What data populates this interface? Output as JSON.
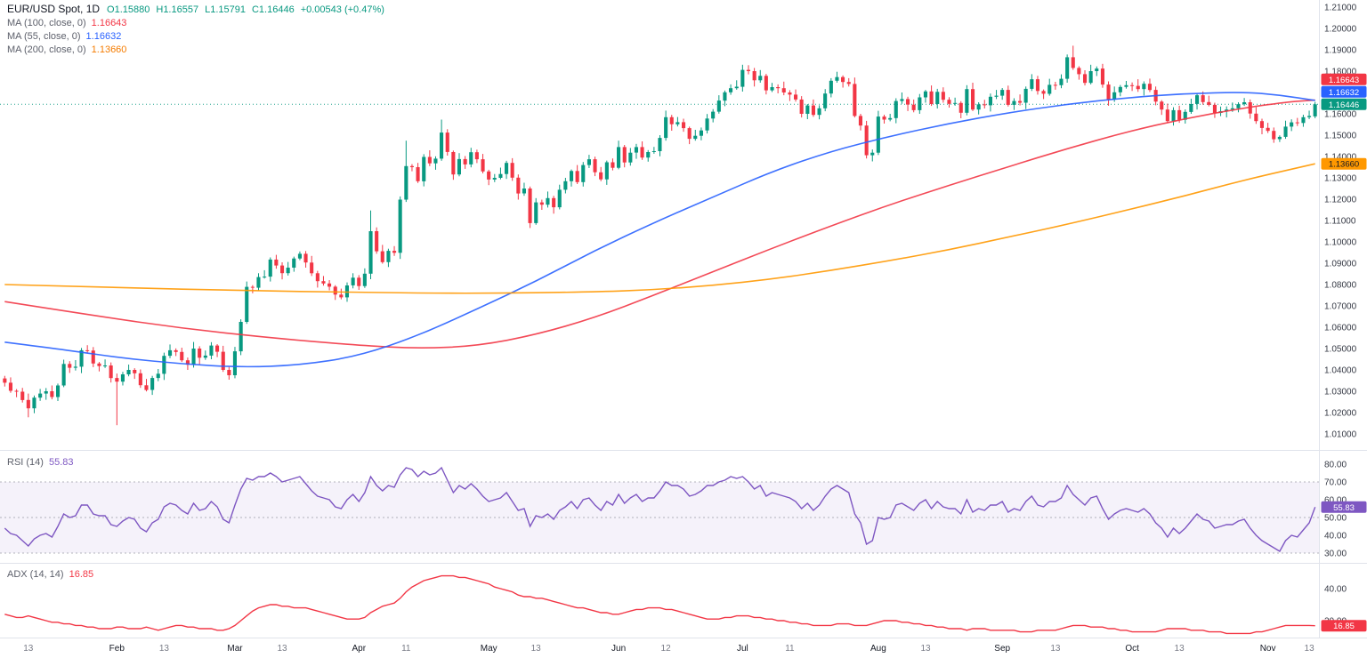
{
  "app": {
    "title": "EUR/USD Spot, 1D"
  },
  "legend": {
    "symbol": "EUR/USD Spot, 1D",
    "o": "O1.15880",
    "h": "H1.16557",
    "l": "L1.15791",
    "c": "C1.16446",
    "change": "+0.00543 (+0.47%)",
    "ma_rows": [
      {
        "label": "MA (100, close, 0)",
        "value": "1.16643"
      },
      {
        "label": "MA (55, close, 0)",
        "value": "1.16632"
      },
      {
        "label": "MA (200, close, 0)",
        "value": "1.13660"
      }
    ]
  },
  "rsi_legend": {
    "label": "RSI (14)",
    "value": "55.83"
  },
  "adx_legend": {
    "label": "ADX (14, 14)",
    "value": "16.85"
  },
  "colors": {
    "up": "#089981",
    "down": "#f23645",
    "ma100": "#f23645",
    "ma55": "#2962ff",
    "ma200": "#ff9800",
    "rsi": "#7e57c2",
    "adx": "#f23645",
    "axis_text": "#363a45",
    "muted_text": "#787b86",
    "separator": "#e0e3eb",
    "rsi_band_fill": "rgba(126,87,194,0.08)"
  },
  "price_scale": {
    "labels": [
      "1.21000",
      "1.20000",
      "1.19000",
      "1.18000",
      "1.17000",
      "1.16000",
      "1.15000",
      "1.14000",
      "1.13000",
      "1.12000",
      "1.11000",
      "1.10000",
      "1.09000",
      "1.08000",
      "1.07000",
      "1.06000",
      "1.05000",
      "1.04000",
      "1.03000",
      "1.02000",
      "1.01000"
    ],
    "badges": [
      {
        "label": "1.16643",
        "value": 1.16643,
        "bg": "#f23645",
        "fg": "#ffffff",
        "name": "ma100-price-badge"
      },
      {
        "label": "1.16632",
        "value": 1.16632,
        "bg": "#2962ff",
        "fg": "#ffffff",
        "name": "ma55-price-badge"
      },
      {
        "label": "1.16446",
        "value": 1.16446,
        "bg": "#089981",
        "fg": "#ffffff",
        "name": "last-price-badge"
      },
      {
        "label": "1.13660",
        "value": 1.1366,
        "bg": "#ff9800",
        "fg": "#131722",
        "name": "ma200-price-badge"
      }
    ]
  },
  "rsi_scale": {
    "labels": [
      "80.00",
      "70.00",
      "60.00",
      "50.00",
      "40.00",
      "30.00"
    ],
    "badge": {
      "label": "55.83",
      "value": 55.83,
      "bg": "#7e57c2",
      "fg": "#ffffff"
    }
  },
  "adx_scale": {
    "labels": [
      "40.00",
      "20.00"
    ],
    "badge": {
      "label": "16.85",
      "value": 16.85,
      "bg": "#f23645",
      "fg": "#ffffff"
    }
  },
  "time_scale": {
    "ticks": [
      {
        "i": 4,
        "label": "13",
        "major": false
      },
      {
        "i": 19,
        "label": "Feb",
        "major": true
      },
      {
        "i": 27,
        "label": "13",
        "major": false
      },
      {
        "i": 39,
        "label": "Mar",
        "major": true
      },
      {
        "i": 47,
        "label": "13",
        "major": false
      },
      {
        "i": 60,
        "label": "Apr",
        "major": true
      },
      {
        "i": 68,
        "label": "11",
        "major": false
      },
      {
        "i": 82,
        "label": "May",
        "major": true
      },
      {
        "i": 90,
        "label": "13",
        "major": false
      },
      {
        "i": 104,
        "label": "Jun",
        "major": true
      },
      {
        "i": 112,
        "label": "12",
        "major": false
      },
      {
        "i": 125,
        "label": "Jul",
        "major": true
      },
      {
        "i": 133,
        "label": "11",
        "major": false
      },
      {
        "i": 148,
        "label": "Aug",
        "major": true
      },
      {
        "i": 156,
        "label": "13",
        "major": false
      },
      {
        "i": 169,
        "label": "Sep",
        "major": true
      },
      {
        "i": 178,
        "label": "13",
        "major": false
      },
      {
        "i": 191,
        "label": "Oct",
        "major": true
      },
      {
        "i": 199,
        "label": "13",
        "major": false
      },
      {
        "i": 214,
        "label": "Nov",
        "major": true
      },
      {
        "i": 221,
        "label": "13",
        "major": false
      }
    ]
  },
  "chart_data": {
    "type": "candlestick",
    "symbol": "EUR/USD Spot",
    "interval": "1D",
    "last": {
      "open": 1.1588,
      "high": 1.16557,
      "low": 1.15791,
      "close": 1.16446,
      "change_abs": 0.00543,
      "change_pct": 0.47
    },
    "price_axis": {
      "min": 1.01,
      "max": 1.21,
      "step": 0.01
    },
    "candles": {
      "first_open": 1.036,
      "closes": [
        1.034,
        1.0302,
        1.0298,
        1.0259,
        1.022,
        1.027,
        1.0289,
        1.03,
        1.0273,
        1.0327,
        1.0428,
        1.041,
        1.0415,
        1.0492,
        1.0491,
        1.043,
        1.0418,
        1.0421,
        1.0362,
        1.0345,
        1.0379,
        1.04,
        1.0384,
        1.0328,
        1.0306,
        1.0362,
        1.0382,
        1.0466,
        1.0492,
        1.0484,
        1.0445,
        1.0424,
        1.05,
        1.0457,
        1.0467,
        1.0514,
        1.0485,
        1.04,
        1.0375,
        1.0487,
        1.0625,
        1.0789,
        1.0785,
        1.0835,
        1.0837,
        1.0917,
        1.0889,
        1.0853,
        1.0879,
        1.0922,
        1.0944,
        1.0903,
        1.0853,
        1.0816,
        1.0805,
        1.079,
        1.0753,
        1.074,
        1.0796,
        1.0832,
        1.0793,
        1.0851,
        1.105,
        1.0956,
        1.0905,
        1.0958,
        1.0949,
        1.1198,
        1.1355,
        1.135,
        1.1284,
        1.1398,
        1.1368,
        1.139,
        1.1512,
        1.1421,
        1.1316,
        1.1388,
        1.1363,
        1.142,
        1.1387,
        1.133,
        1.1292,
        1.13,
        1.1318,
        1.137,
        1.1301,
        1.1227,
        1.125,
        1.1088,
        1.1185,
        1.1174,
        1.1205,
        1.1162,
        1.1244,
        1.1284,
        1.1332,
        1.128,
        1.136,
        1.1387,
        1.1326,
        1.1293,
        1.1373,
        1.1347,
        1.1444,
        1.1372,
        1.1418,
        1.1444,
        1.1395,
        1.1421,
        1.1425,
        1.1487,
        1.1584,
        1.1551,
        1.1561,
        1.1533,
        1.1483,
        1.1497,
        1.1522,
        1.1578,
        1.161,
        1.1662,
        1.1701,
        1.172,
        1.1727,
        1.1806,
        1.18,
        1.1757,
        1.1778,
        1.171,
        1.1725,
        1.172,
        1.17,
        1.169,
        1.1667,
        1.16,
        1.1639,
        1.1595,
        1.1626,
        1.1695,
        1.1755,
        1.1772,
        1.1749,
        1.174,
        1.159,
        1.1545,
        1.1406,
        1.1418,
        1.1587,
        1.1573,
        1.158,
        1.166,
        1.1669,
        1.1643,
        1.1617,
        1.1677,
        1.1705,
        1.1646,
        1.1703,
        1.1666,
        1.1647,
        1.1651,
        1.1605,
        1.1716,
        1.162,
        1.1644,
        1.164,
        1.168,
        1.1685,
        1.1712,
        1.1642,
        1.166,
        1.1652,
        1.1717,
        1.1762,
        1.1707,
        1.1694,
        1.1736,
        1.1734,
        1.1764,
        1.1865,
        1.1815,
        1.1786,
        1.1745,
        1.18,
        1.1812,
        1.1737,
        1.1667,
        1.1701,
        1.1726,
        1.1734,
        1.1731,
        1.1716,
        1.1741,
        1.1712,
        1.1657,
        1.162,
        1.1566,
        1.1617,
        1.1572,
        1.1609,
        1.1646,
        1.1687,
        1.1655,
        1.1642,
        1.1604,
        1.1612,
        1.162,
        1.1626,
        1.1645,
        1.1654,
        1.1601,
        1.1566,
        1.1534,
        1.152,
        1.1481,
        1.1492,
        1.154,
        1.156,
        1.1557,
        1.1584,
        1.159,
        1.16446
      ],
      "wick_high_pattern_pips": [
        12,
        25,
        8,
        18,
        30,
        10,
        22,
        15,
        27,
        9,
        20,
        13,
        31,
        11,
        24,
        16,
        7,
        28,
        14,
        21
      ],
      "wick_low_pattern_pips": [
        18,
        9,
        26,
        12,
        7,
        23,
        15,
        29,
        11,
        19,
        8,
        24,
        13,
        30,
        10,
        17,
        25,
        9,
        21,
        14
      ],
      "overrides": {
        "4": {
          "low": 1.0178
        },
        "19": {
          "low": 1.0141
        },
        "50": {
          "high": 1.0955
        },
        "62": {
          "high": 1.1147
        },
        "68": {
          "high": 1.1474
        },
        "74": {
          "high": 1.1573
        },
        "89": {
          "low": 1.1065
        },
        "125": {
          "high": 1.183
        },
        "180": {
          "high": 1.1878
        },
        "181": {
          "high": 1.1919
        },
        "216": {
          "low": 1.1468
        },
        "222": {
          "open": 1.1588,
          "high": 1.16557,
          "low": 1.15791,
          "close": 1.16446
        }
      }
    },
    "ma": [
      {
        "name": "MA 100",
        "period": 100,
        "color": "#f23645",
        "last": 1.16643,
        "anchors": [
          [
            0,
            1.072
          ],
          [
            15,
            1.0655
          ],
          [
            30,
            1.0595
          ],
          [
            45,
            1.055
          ],
          [
            60,
            1.0515
          ],
          [
            70,
            1.05
          ],
          [
            80,
            1.0512
          ],
          [
            90,
            1.0565
          ],
          [
            100,
            1.0645
          ],
          [
            110,
            1.075
          ],
          [
            120,
            1.086
          ],
          [
            130,
            1.097
          ],
          [
            140,
            1.1075
          ],
          [
            150,
            1.1175
          ],
          [
            160,
            1.1265
          ],
          [
            170,
            1.1352
          ],
          [
            180,
            1.1437
          ],
          [
            190,
            1.1515
          ],
          [
            200,
            1.1578
          ],
          [
            210,
            1.1628
          ],
          [
            218,
            1.1658
          ],
          [
            222,
            1.1664
          ]
        ]
      },
      {
        "name": "MA 55",
        "period": 55,
        "color": "#2962ff",
        "last": 1.16632,
        "anchors": [
          [
            0,
            1.053
          ],
          [
            10,
            1.0495
          ],
          [
            20,
            1.0455
          ],
          [
            30,
            1.0428
          ],
          [
            40,
            1.0412
          ],
          [
            50,
            1.0422
          ],
          [
            60,
            1.0465
          ],
          [
            70,
            1.056
          ],
          [
            80,
            1.0685
          ],
          [
            90,
            1.0815
          ],
          [
            100,
            1.096
          ],
          [
            110,
            1.109
          ],
          [
            120,
            1.121
          ],
          [
            130,
            1.133
          ],
          [
            140,
            1.1425
          ],
          [
            150,
            1.1495
          ],
          [
            160,
            1.1555
          ],
          [
            170,
            1.1605
          ],
          [
            180,
            1.1645
          ],
          [
            190,
            1.1675
          ],
          [
            200,
            1.1695
          ],
          [
            210,
            1.1702
          ],
          [
            216,
            1.1688
          ],
          [
            222,
            1.1663
          ]
        ]
      },
      {
        "name": "MA 200",
        "period": 200,
        "color": "#ff9800",
        "last": 1.1366,
        "anchors": [
          [
            0,
            1.08
          ],
          [
            20,
            1.0785
          ],
          [
            40,
            1.0772
          ],
          [
            60,
            1.0763
          ],
          [
            80,
            1.0758
          ],
          [
            100,
            1.0765
          ],
          [
            110,
            1.0776
          ],
          [
            120,
            1.0796
          ],
          [
            130,
            1.0826
          ],
          [
            140,
            1.0866
          ],
          [
            150,
            1.0912
          ],
          [
            160,
            1.0963
          ],
          [
            170,
            1.1022
          ],
          [
            180,
            1.1082
          ],
          [
            190,
            1.1148
          ],
          [
            200,
            1.1216
          ],
          [
            210,
            1.129
          ],
          [
            222,
            1.1366
          ]
        ]
      }
    ],
    "rsi": {
      "period": 14,
      "value": 55.83,
      "band": [
        30,
        70
      ],
      "levels": [
        70,
        50,
        30
      ],
      "axis": {
        "min": 25,
        "max": 85
      },
      "values": [
        44,
        41,
        40,
        37,
        34,
        38,
        40,
        41,
        39,
        45,
        52,
        50,
        51,
        57,
        57,
        52,
        51,
        51,
        46,
        45,
        48,
        50,
        49,
        44,
        42,
        47,
        49,
        56,
        58,
        57,
        54,
        52,
        58,
        54,
        55,
        59,
        56,
        49,
        47,
        57,
        66,
        72,
        71,
        73,
        73,
        75,
        73,
        70,
        71,
        72,
        73,
        69,
        65,
        62,
        61,
        60,
        56,
        55,
        60,
        63,
        59,
        64,
        73,
        68,
        65,
        68,
        67,
        74,
        78,
        77,
        73,
        76,
        74,
        75,
        78,
        71,
        64,
        68,
        66,
        69,
        66,
        62,
        59,
        60,
        61,
        64,
        59,
        54,
        55,
        45,
        51,
        50,
        52,
        49,
        54,
        56,
        59,
        55,
        60,
        61,
        57,
        54,
        59,
        57,
        63,
        58,
        61,
        63,
        59,
        61,
        61,
        65,
        70,
        68,
        68,
        66,
        62,
        63,
        65,
        68,
        68,
        70,
        71,
        73,
        72,
        73,
        70,
        66,
        68,
        62,
        64,
        63,
        62,
        61,
        59,
        55,
        58,
        54,
        57,
        62,
        66,
        68,
        66,
        64,
        52,
        47,
        35,
        37,
        50,
        49,
        50,
        57,
        58,
        56,
        54,
        58,
        60,
        55,
        59,
        56,
        55,
        55,
        52,
        60,
        53,
        55,
        54,
        57,
        57,
        59,
        53,
        55,
        54,
        59,
        62,
        57,
        56,
        59,
        59,
        61,
        68,
        63,
        60,
        57,
        61,
        62,
        55,
        49,
        52,
        54,
        55,
        54,
        53,
        55,
        52,
        47,
        44,
        39,
        44,
        41,
        44,
        48,
        52,
        49,
        48,
        44,
        45,
        46,
        46,
        48,
        49,
        44,
        40,
        37,
        35,
        33,
        31,
        37,
        40,
        39,
        43,
        47,
        55.83
      ]
    },
    "adx": {
      "period": "14, 14",
      "value": 16.85,
      "axis_labels": [
        40,
        20
      ],
      "values": [
        24,
        23,
        22,
        22,
        23,
        22,
        21,
        20,
        19,
        19,
        18,
        18,
        17,
        17,
        16,
        16,
        15,
        15,
        15,
        16,
        16,
        15,
        15,
        15,
        16,
        15,
        14,
        15,
        16,
        17,
        17,
        16,
        16,
        15,
        15,
        15,
        14,
        14,
        15,
        17,
        20,
        23,
        26,
        28,
        29,
        30,
        30,
        29,
        29,
        28,
        28,
        28,
        27,
        26,
        25,
        24,
        23,
        22,
        21,
        21,
        21,
        22,
        25,
        27,
        29,
        30,
        31,
        34,
        38,
        41,
        43,
        45,
        46,
        47,
        48,
        48,
        48,
        47,
        47,
        46,
        45,
        44,
        43,
        41,
        40,
        39,
        38,
        36,
        35,
        35,
        34,
        34,
        33,
        32,
        31,
        30,
        29,
        28,
        28,
        27,
        26,
        25,
        25,
        24,
        24,
        25,
        26,
        27,
        27,
        28,
        28,
        28,
        27,
        27,
        26,
        25,
        24,
        23,
        22,
        21,
        21,
        21,
        22,
        22,
        23,
        23,
        23,
        22,
        22,
        21,
        21,
        20,
        20,
        19,
        19,
        18,
        18,
        17,
        17,
        17,
        17,
        18,
        18,
        18,
        17,
        17,
        17,
        18,
        19,
        20,
        20,
        20,
        19,
        19,
        18,
        18,
        17,
        17,
        16,
        16,
        15,
        15,
        15,
        14,
        15,
        15,
        15,
        14,
        14,
        14,
        14,
        14,
        13,
        13,
        13,
        14,
        14,
        14,
        14,
        15,
        16,
        17,
        17,
        17,
        16,
        16,
        16,
        15,
        15,
        14,
        14,
        13,
        13,
        13,
        13,
        13,
        14,
        15,
        15,
        15,
        15,
        14,
        14,
        14,
        13,
        13,
        13,
        12,
        12,
        12,
        12,
        12,
        13,
        13,
        14,
        15,
        16,
        17,
        17,
        17,
        17,
        17,
        16.85
      ]
    }
  }
}
